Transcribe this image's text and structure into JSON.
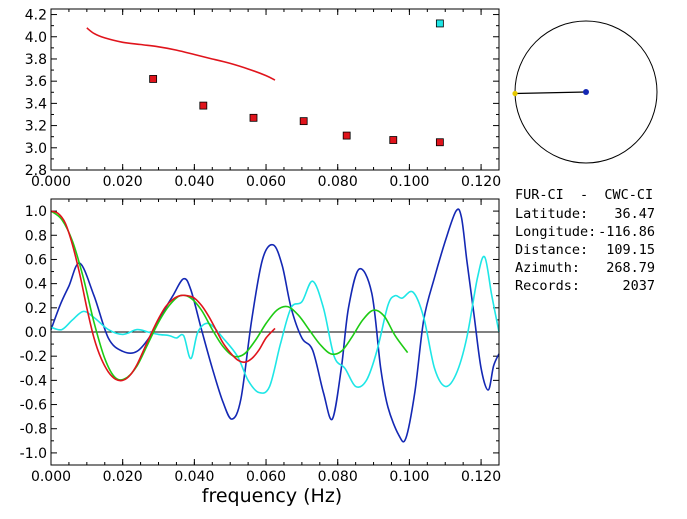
{
  "info": {
    "pair": "FUR-CI  -  CWC-CI",
    "lines": [
      {
        "label": "Latitude:",
        "value": "36.47"
      },
      {
        "label": "Longitude:",
        "value": "-116.86"
      },
      {
        "label": "Distance:",
        "value": "109.15"
      },
      {
        "label": "Azimuth:",
        "value": "268.79"
      },
      {
        "label": "Records:",
        "value": "2037"
      }
    ]
  },
  "colors": {
    "red": "#e0141c",
    "green": "#1ecb14",
    "blue": "#1428b4",
    "cyan": "#1ee6e6",
    "axis": "#000000"
  },
  "chart_data": [
    {
      "type": "scatter",
      "xlabel": "",
      "ylabel": "",
      "xlim": [
        0.0,
        0.125
      ],
      "ylim": [
        2.8,
        4.25
      ],
      "x_ticks": [
        "0.000",
        "0.020",
        "0.040",
        "0.060",
        "0.080",
        "0.100",
        "0.120"
      ],
      "x_tick_values": [
        0.0,
        0.02,
        0.04,
        0.06,
        0.08,
        0.1,
        0.12
      ],
      "y_ticks": [
        "2.8",
        "3.0",
        "3.2",
        "3.4",
        "3.6",
        "3.8",
        "4.0",
        "4.2"
      ],
      "y_tick_values": [
        2.8,
        3.0,
        3.2,
        3.4,
        3.6,
        3.8,
        4.0,
        4.2
      ],
      "series": [
        {
          "kind": "line",
          "color": "red",
          "x": [
            0.01,
            0.012,
            0.015,
            0.02,
            0.025,
            0.03,
            0.035,
            0.04,
            0.045,
            0.05,
            0.055,
            0.06,
            0.0625
          ],
          "y": [
            4.08,
            4.03,
            3.99,
            3.95,
            3.93,
            3.91,
            3.88,
            3.84,
            3.8,
            3.76,
            3.71,
            3.65,
            3.61
          ]
        },
        {
          "kind": "points",
          "color": "red",
          "marker": "square",
          "x": [
            0.0285,
            0.0425,
            0.0565,
            0.0705,
            0.0825,
            0.0955,
            0.1085
          ],
          "y": [
            3.62,
            3.38,
            3.27,
            3.24,
            3.11,
            3.07,
            3.05
          ]
        },
        {
          "kind": "points",
          "color": "cyan",
          "marker": "square",
          "x": [
            0.1085
          ],
          "y": [
            4.12
          ]
        }
      ]
    },
    {
      "type": "line",
      "xlabel": "frequency (Hz)",
      "ylabel": "",
      "xlim": [
        0.0,
        0.125
      ],
      "ylim": [
        -1.1,
        1.1
      ],
      "x_ticks": [
        "0.000",
        "0.020",
        "0.040",
        "0.060",
        "0.080",
        "0.100",
        "0.120"
      ],
      "x_tick_values": [
        0.0,
        0.02,
        0.04,
        0.06,
        0.08,
        0.1,
        0.12
      ],
      "y_ticks": [
        "1.0",
        "0.8",
        "0.6",
        "0.4",
        "0.2",
        "0.0",
        "-0.2",
        "-0.4",
        "-0.6",
        "-0.8",
        "-1.0"
      ],
      "y_tick_values": [
        1.0,
        0.8,
        0.6,
        0.4,
        0.2,
        0.0,
        -0.2,
        -0.4,
        -0.6,
        -0.8,
        -1.0
      ],
      "zero_line": true,
      "series": [
        {
          "color": "blue",
          "x": [
            0.0,
            0.0025,
            0.005,
            0.008,
            0.012,
            0.016,
            0.02,
            0.024,
            0.028,
            0.031,
            0.034,
            0.037,
            0.039,
            0.042,
            0.045,
            0.048,
            0.0505,
            0.053,
            0.056,
            0.059,
            0.062,
            0.0645,
            0.067,
            0.07,
            0.073,
            0.076,
            0.0785,
            0.081,
            0.083,
            0.086,
            0.0895,
            0.092,
            0.094,
            0.097,
            0.099,
            0.1015,
            0.104,
            0.107,
            0.11,
            0.113,
            0.1145,
            0.116,
            0.118,
            0.12,
            0.122,
            0.1235,
            0.125
          ],
          "y": [
            0.02,
            0.22,
            0.38,
            0.57,
            0.3,
            -0.05,
            -0.16,
            -0.16,
            -0.02,
            0.15,
            0.3,
            0.44,
            0.35,
            0.02,
            -0.3,
            -0.58,
            -0.72,
            -0.55,
            0.1,
            0.6,
            0.72,
            0.55,
            0.2,
            -0.05,
            -0.15,
            -0.5,
            -0.72,
            -0.3,
            0.2,
            0.52,
            0.32,
            -0.3,
            -0.62,
            -0.85,
            -0.88,
            -0.5,
            0.1,
            0.45,
            0.75,
            1.0,
            0.95,
            0.6,
            0.15,
            -0.3,
            -0.48,
            -0.28,
            -0.18
          ]
        },
        {
          "color": "cyan",
          "x": [
            0.0,
            0.003,
            0.006,
            0.009,
            0.012,
            0.016,
            0.02,
            0.024,
            0.027,
            0.03,
            0.033,
            0.035,
            0.037,
            0.039,
            0.041,
            0.044,
            0.048,
            0.052,
            0.055,
            0.058,
            0.061,
            0.064,
            0.067,
            0.07,
            0.073,
            0.076,
            0.079,
            0.082,
            0.085,
            0.088,
            0.091,
            0.094,
            0.096,
            0.098,
            0.101,
            0.104,
            0.107,
            0.11,
            0.113,
            0.116,
            0.119,
            0.121,
            0.123,
            0.125
          ],
          "y": [
            0.04,
            0.02,
            0.1,
            0.17,
            0.12,
            0.02,
            -0.02,
            0.02,
            0.0,
            -0.02,
            -0.03,
            -0.05,
            -0.03,
            -0.22,
            0.0,
            0.07,
            -0.05,
            -0.2,
            -0.4,
            -0.5,
            -0.45,
            -0.1,
            0.2,
            0.25,
            0.42,
            0.2,
            -0.2,
            -0.3,
            -0.45,
            -0.4,
            -0.15,
            0.22,
            0.3,
            0.28,
            0.33,
            0.12,
            -0.3,
            -0.45,
            -0.35,
            -0.05,
            0.45,
            0.62,
            0.3,
            0.0
          ]
        },
        {
          "color": "green",
          "x": [
            0.0,
            0.003,
            0.006,
            0.009,
            0.012,
            0.015,
            0.018,
            0.021,
            0.024,
            0.027,
            0.03,
            0.033,
            0.036,
            0.039,
            0.042,
            0.045,
            0.048,
            0.051,
            0.054,
            0.057,
            0.06,
            0.063,
            0.066,
            0.069,
            0.072,
            0.075,
            0.078,
            0.081,
            0.084,
            0.087,
            0.09,
            0.093,
            0.096,
            0.0995
          ],
          "y": [
            1.0,
            0.93,
            0.75,
            0.45,
            0.08,
            -0.22,
            -0.38,
            -0.38,
            -0.28,
            -0.1,
            0.08,
            0.22,
            0.3,
            0.28,
            0.18,
            0.02,
            -0.12,
            -0.2,
            -0.18,
            -0.07,
            0.07,
            0.18,
            0.21,
            0.14,
            0.02,
            -0.1,
            -0.18,
            -0.16,
            -0.04,
            0.1,
            0.18,
            0.13,
            -0.03,
            -0.17
          ]
        },
        {
          "color": "red",
          "x": [
            0.0,
            0.002,
            0.004,
            0.006,
            0.008,
            0.01,
            0.012,
            0.014,
            0.016,
            0.018,
            0.02,
            0.022,
            0.024,
            0.026,
            0.028,
            0.03,
            0.032,
            0.034,
            0.036,
            0.038,
            0.04,
            0.042,
            0.044,
            0.046,
            0.048,
            0.05,
            0.052,
            0.054,
            0.056,
            0.058,
            0.06,
            0.0625
          ],
          "y": [
            1.0,
            0.98,
            0.9,
            0.72,
            0.48,
            0.2,
            -0.05,
            -0.22,
            -0.33,
            -0.39,
            -0.4,
            -0.36,
            -0.27,
            -0.14,
            -0.01,
            0.11,
            0.21,
            0.27,
            0.3,
            0.3,
            0.28,
            0.22,
            0.13,
            0.02,
            -0.09,
            -0.17,
            -0.23,
            -0.25,
            -0.22,
            -0.15,
            -0.05,
            0.03
          ]
        }
      ]
    }
  ],
  "azimuth_diagram": {
    "azimuth_deg": 268.79,
    "center_color": "blue",
    "end_color": "#e6c800"
  }
}
